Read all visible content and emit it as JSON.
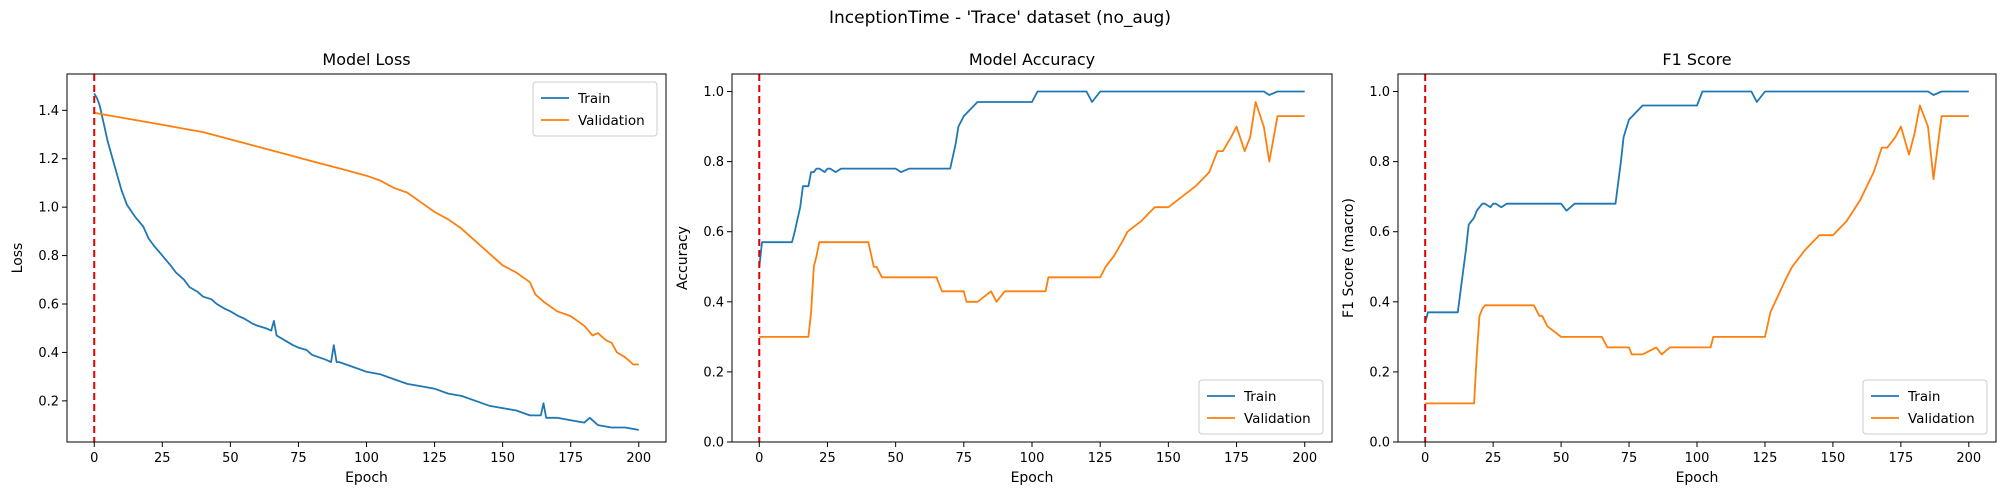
{
  "figure": {
    "suptitle": "InceptionTime - 'Trace' dataset (no_aug)"
  },
  "colors": {
    "train": "#1f77b4",
    "validation": "#ff7f0e",
    "marker": "#e00000"
  },
  "chart_data": [
    {
      "type": "line",
      "title": "Model Loss",
      "xlabel": "Epoch",
      "ylabel": "Loss",
      "xlim": [
        -10,
        210
      ],
      "ylim": [
        0.03,
        1.55
      ],
      "xticks": [
        0,
        25,
        50,
        75,
        100,
        125,
        150,
        175,
        200
      ],
      "yticks": [
        0.2,
        0.4,
        0.6,
        0.8,
        1.0,
        1.2,
        1.4
      ],
      "ytick_labels": [
        "0.2",
        "0.4",
        "0.6",
        "0.8",
        "1.0",
        "1.2",
        "1.4"
      ],
      "vline_x": 0,
      "legend_loc": "upper right",
      "series": [
        {
          "name": "Train",
          "x": [
            0,
            1,
            2,
            3,
            5,
            7,
            10,
            12,
            15,
            18,
            20,
            22,
            25,
            28,
            30,
            33,
            35,
            38,
            40,
            43,
            45,
            48,
            50,
            53,
            55,
            58,
            60,
            63,
            65,
            66,
            67,
            70,
            73,
            75,
            78,
            80,
            85,
            87,
            88,
            89,
            90,
            95,
            100,
            105,
            110,
            115,
            120,
            125,
            130,
            135,
            140,
            145,
            150,
            155,
            160,
            164,
            165,
            166,
            170,
            175,
            180,
            182,
            185,
            190,
            195,
            200
          ],
          "y": [
            1.47,
            1.45,
            1.42,
            1.37,
            1.27,
            1.19,
            1.07,
            1.01,
            0.96,
            0.92,
            0.87,
            0.84,
            0.8,
            0.76,
            0.73,
            0.7,
            0.67,
            0.65,
            0.63,
            0.62,
            0.6,
            0.58,
            0.57,
            0.55,
            0.54,
            0.52,
            0.51,
            0.5,
            0.49,
            0.53,
            0.47,
            0.45,
            0.43,
            0.42,
            0.41,
            0.39,
            0.37,
            0.36,
            0.43,
            0.36,
            0.36,
            0.34,
            0.32,
            0.31,
            0.29,
            0.27,
            0.26,
            0.25,
            0.23,
            0.22,
            0.2,
            0.18,
            0.17,
            0.16,
            0.14,
            0.14,
            0.19,
            0.13,
            0.13,
            0.12,
            0.11,
            0.13,
            0.1,
            0.09,
            0.09,
            0.08
          ]
        },
        {
          "name": "Validation",
          "x": [
            0,
            5,
            10,
            15,
            20,
            25,
            30,
            40,
            50,
            60,
            70,
            80,
            90,
            100,
            105,
            110,
            115,
            120,
            125,
            130,
            135,
            140,
            145,
            150,
            155,
            160,
            162,
            165,
            170,
            175,
            180,
            183,
            185,
            188,
            190,
            192,
            195,
            198,
            200
          ],
          "y": [
            1.39,
            1.38,
            1.37,
            1.36,
            1.35,
            1.34,
            1.33,
            1.31,
            1.28,
            1.25,
            1.22,
            1.19,
            1.16,
            1.13,
            1.11,
            1.08,
            1.06,
            1.02,
            0.98,
            0.95,
            0.91,
            0.86,
            0.81,
            0.76,
            0.73,
            0.69,
            0.64,
            0.61,
            0.57,
            0.55,
            0.51,
            0.47,
            0.48,
            0.45,
            0.44,
            0.4,
            0.38,
            0.35,
            0.35
          ]
        }
      ]
    },
    {
      "type": "line",
      "title": "Model Accuracy",
      "xlabel": "Epoch",
      "ylabel": "Accuracy",
      "xlim": [
        -10,
        210
      ],
      "ylim": [
        0.0,
        1.05
      ],
      "xticks": [
        0,
        25,
        50,
        75,
        100,
        125,
        150,
        175,
        200
      ],
      "yticks": [
        0.0,
        0.2,
        0.4,
        0.6,
        0.8,
        1.0
      ],
      "ytick_labels": [
        "0.0",
        "0.2",
        "0.4",
        "0.6",
        "0.8",
        "1.0"
      ],
      "vline_x": 0,
      "legend_loc": "lower right",
      "series": [
        {
          "name": "Train",
          "x": [
            0,
            1,
            2,
            5,
            10,
            12,
            13,
            15,
            16,
            18,
            19,
            20,
            21,
            22,
            24,
            25,
            26,
            28,
            30,
            33,
            35,
            40,
            50,
            52,
            55,
            57,
            60,
            70,
            72,
            73,
            75,
            80,
            85,
            90,
            95,
            100,
            102,
            105,
            120,
            122,
            125,
            150,
            185,
            187,
            190,
            200
          ],
          "y": [
            0.5,
            0.57,
            0.57,
            0.57,
            0.57,
            0.57,
            0.6,
            0.67,
            0.73,
            0.73,
            0.77,
            0.77,
            0.78,
            0.78,
            0.77,
            0.78,
            0.78,
            0.77,
            0.78,
            0.78,
            0.78,
            0.78,
            0.78,
            0.77,
            0.78,
            0.78,
            0.78,
            0.78,
            0.85,
            0.9,
            0.93,
            0.97,
            0.97,
            0.97,
            0.97,
            0.97,
            1.0,
            1.0,
            1.0,
            0.97,
            1.0,
            1.0,
            1.0,
            0.99,
            1.0,
            1.0
          ]
        },
        {
          "name": "Validation",
          "x": [
            0,
            18,
            19,
            20,
            21,
            22,
            25,
            35,
            40,
            42,
            43,
            45,
            50,
            65,
            67,
            70,
            75,
            76,
            80,
            85,
            87,
            90,
            95,
            105,
            106,
            110,
            120,
            125,
            127,
            130,
            133,
            135,
            140,
            145,
            150,
            155,
            160,
            165,
            168,
            170,
            173,
            175,
            178,
            180,
            182,
            185,
            187,
            190,
            195,
            200
          ],
          "y": [
            0.3,
            0.3,
            0.37,
            0.5,
            0.53,
            0.57,
            0.57,
            0.57,
            0.57,
            0.5,
            0.5,
            0.47,
            0.47,
            0.47,
            0.43,
            0.43,
            0.43,
            0.4,
            0.4,
            0.43,
            0.4,
            0.43,
            0.43,
            0.43,
            0.47,
            0.47,
            0.47,
            0.47,
            0.5,
            0.53,
            0.57,
            0.6,
            0.63,
            0.67,
            0.67,
            0.7,
            0.73,
            0.77,
            0.83,
            0.83,
            0.87,
            0.9,
            0.83,
            0.87,
            0.97,
            0.9,
            0.8,
            0.93,
            0.93,
            0.93
          ]
        }
      ]
    },
    {
      "type": "line",
      "title": "F1 Score",
      "xlabel": "Epoch",
      "ylabel": "F1 Score (macro)",
      "xlim": [
        -10,
        210
      ],
      "ylim": [
        0.0,
        1.05
      ],
      "xticks": [
        0,
        25,
        50,
        75,
        100,
        125,
        150,
        175,
        200
      ],
      "yticks": [
        0.0,
        0.2,
        0.4,
        0.6,
        0.8,
        1.0
      ],
      "ytick_labels": [
        "0.0",
        "0.2",
        "0.4",
        "0.6",
        "0.8",
        "1.0"
      ],
      "vline_x": 0,
      "legend_loc": "lower right",
      "series": [
        {
          "name": "Train",
          "x": [
            0,
            1,
            2,
            5,
            10,
            12,
            13,
            15,
            16,
            18,
            19,
            20,
            21,
            22,
            24,
            25,
            26,
            28,
            30,
            33,
            35,
            40,
            50,
            52,
            55,
            57,
            60,
            70,
            72,
            73,
            75,
            80,
            85,
            90,
            95,
            100,
            102,
            105,
            120,
            122,
            125,
            150,
            185,
            187,
            190,
            200
          ],
          "y": [
            0.34,
            0.37,
            0.37,
            0.37,
            0.37,
            0.37,
            0.43,
            0.55,
            0.62,
            0.64,
            0.66,
            0.67,
            0.68,
            0.68,
            0.67,
            0.68,
            0.68,
            0.67,
            0.68,
            0.68,
            0.68,
            0.68,
            0.68,
            0.66,
            0.68,
            0.68,
            0.68,
            0.68,
            0.8,
            0.87,
            0.92,
            0.96,
            0.96,
            0.96,
            0.96,
            0.96,
            1.0,
            1.0,
            1.0,
            0.97,
            1.0,
            1.0,
            1.0,
            0.99,
            1.0,
            1.0
          ]
        },
        {
          "name": "Validation",
          "x": [
            0,
            18,
            19,
            20,
            21,
            22,
            25,
            35,
            40,
            42,
            43,
            45,
            50,
            65,
            67,
            70,
            75,
            76,
            80,
            85,
            87,
            90,
            95,
            105,
            106,
            110,
            120,
            125,
            127,
            130,
            133,
            135,
            140,
            145,
            150,
            155,
            160,
            165,
            168,
            170,
            173,
            175,
            178,
            180,
            182,
            185,
            187,
            190,
            195,
            200
          ],
          "y": [
            0.11,
            0.11,
            0.25,
            0.36,
            0.38,
            0.39,
            0.39,
            0.39,
            0.39,
            0.36,
            0.36,
            0.33,
            0.3,
            0.3,
            0.27,
            0.27,
            0.27,
            0.25,
            0.25,
            0.27,
            0.25,
            0.27,
            0.27,
            0.27,
            0.3,
            0.3,
            0.3,
            0.3,
            0.37,
            0.42,
            0.47,
            0.5,
            0.55,
            0.59,
            0.59,
            0.63,
            0.69,
            0.77,
            0.84,
            0.84,
            0.87,
            0.9,
            0.82,
            0.88,
            0.96,
            0.9,
            0.75,
            0.93,
            0.93,
            0.93
          ]
        }
      ]
    }
  ]
}
